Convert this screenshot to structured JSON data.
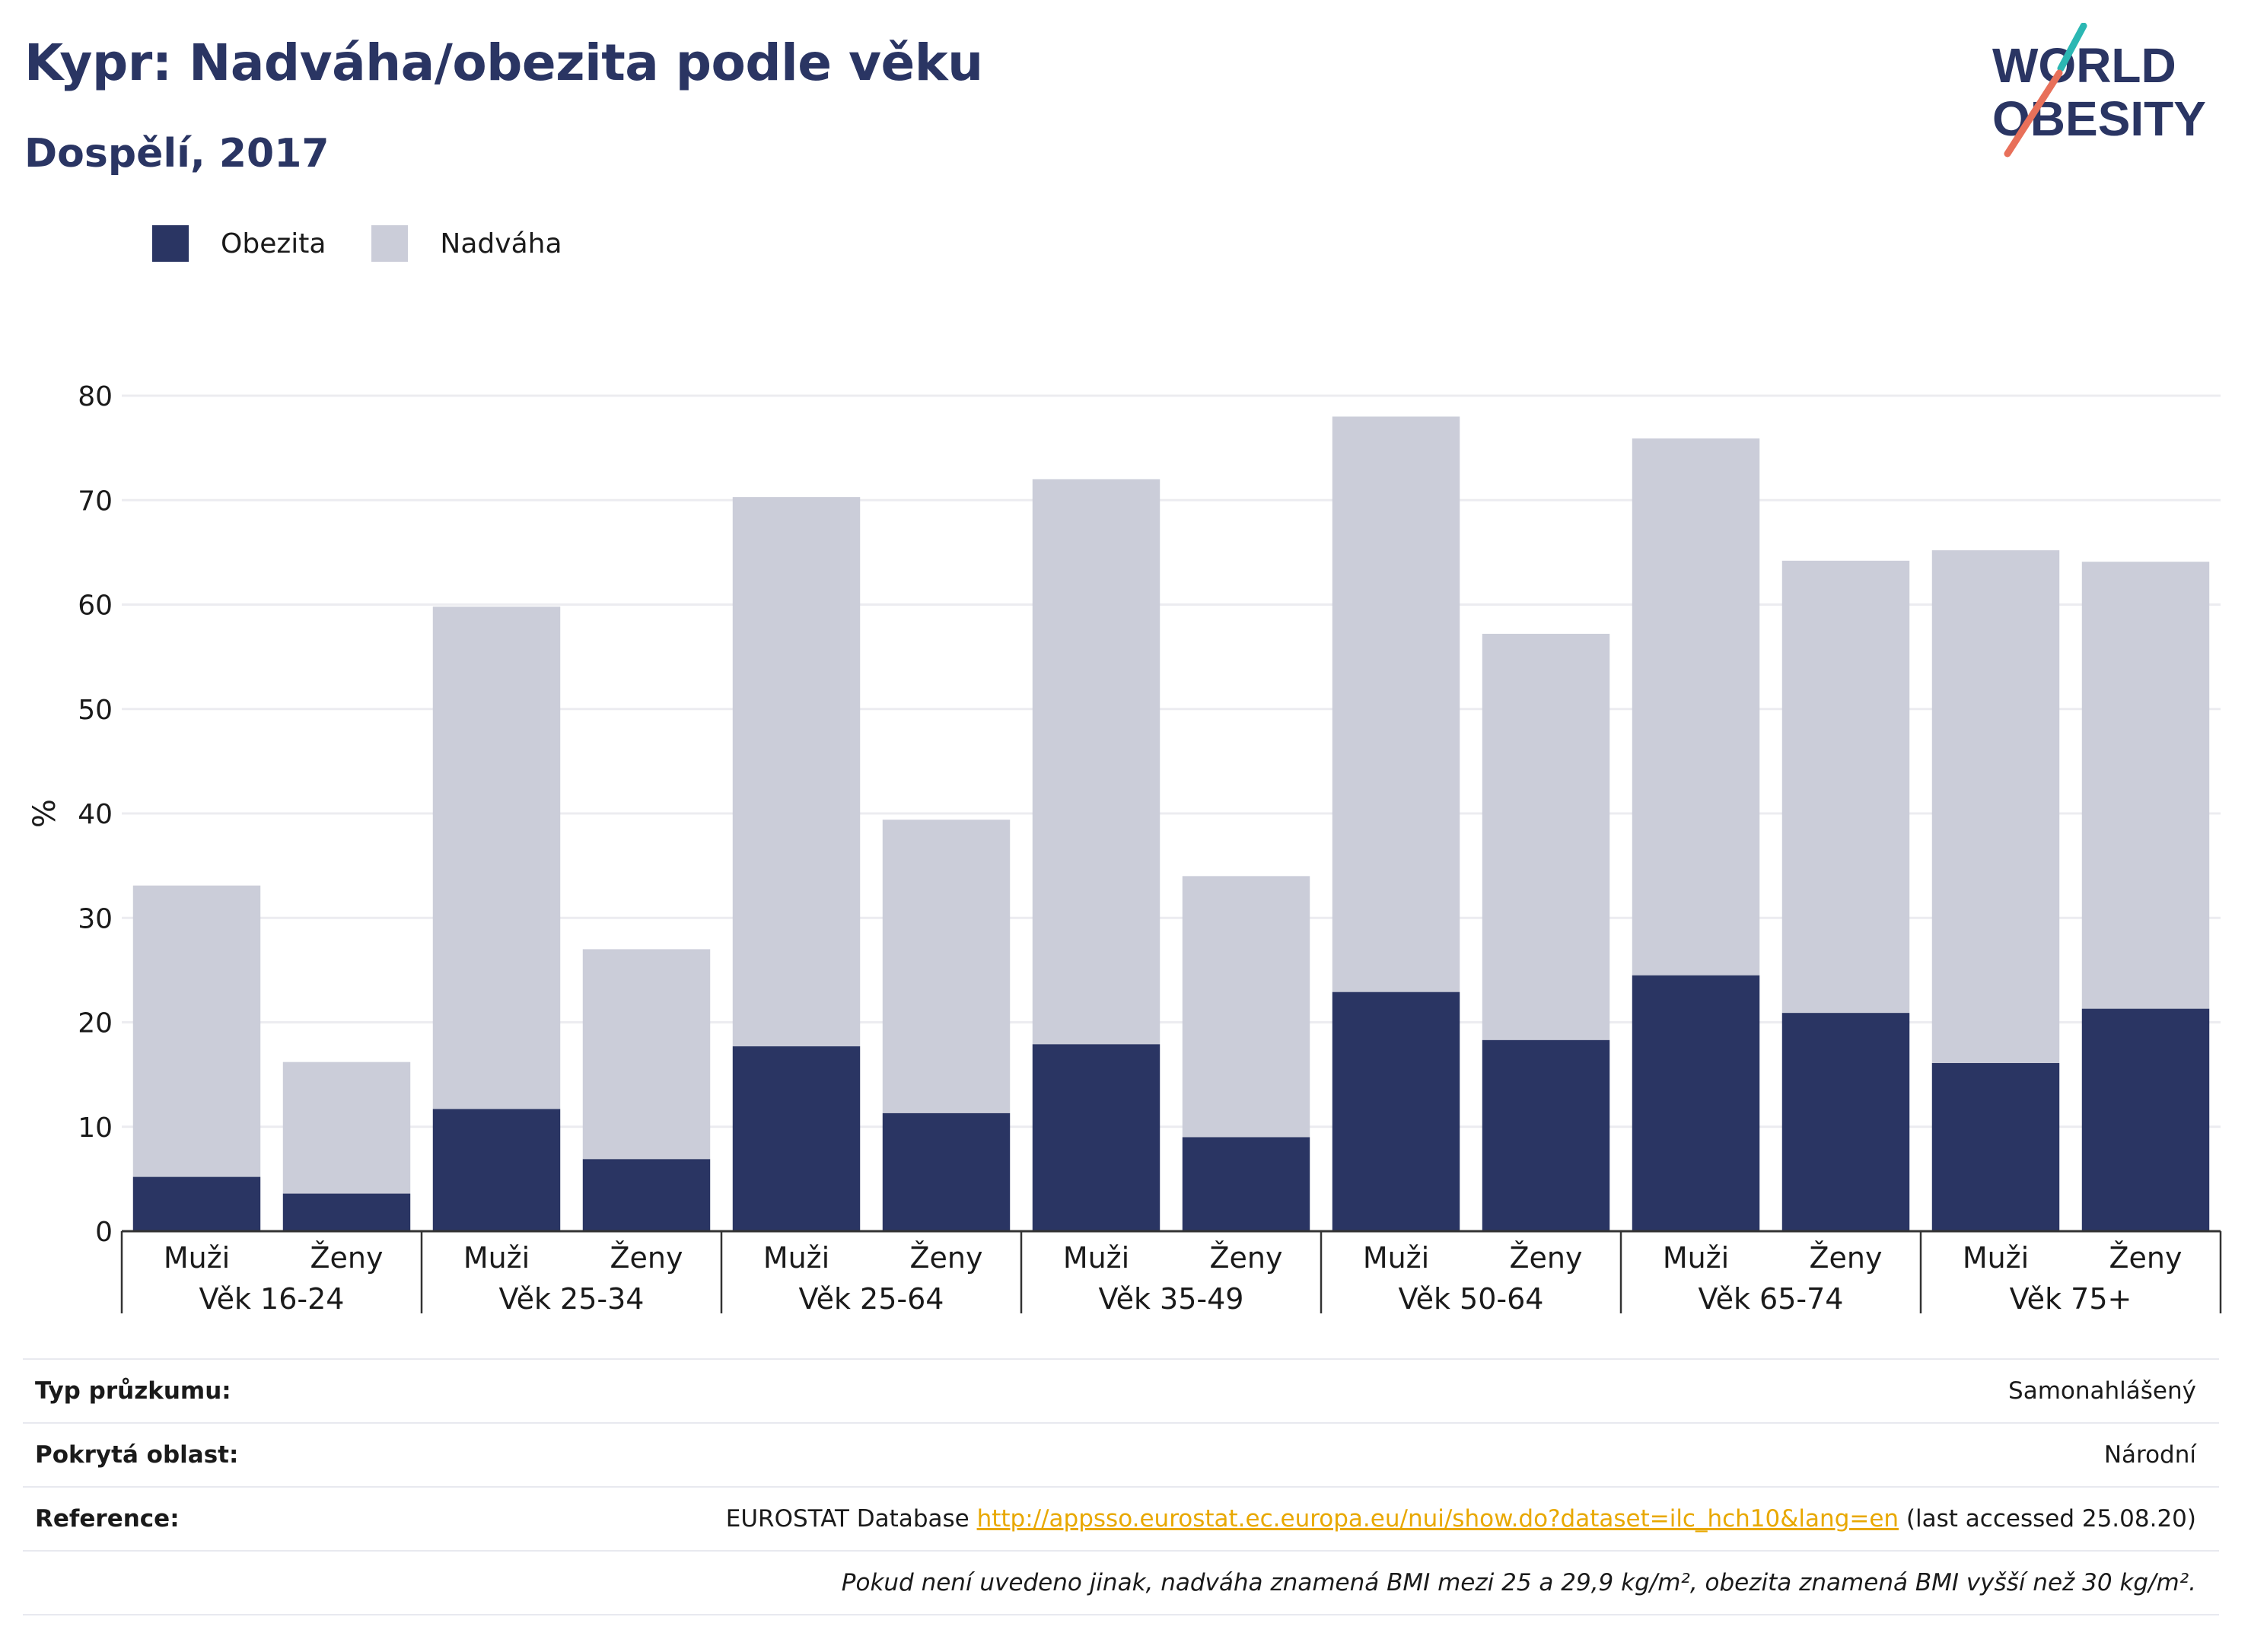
{
  "header": {
    "title": "Kypr: Nadváha/obezita podle věku",
    "subtitle": "Dospělí, 2017"
  },
  "logo": {
    "line1": "WORLD",
    "line2": "OBESITY"
  },
  "colors": {
    "obesity": "#2a3563",
    "overweight": "#cbcdd9",
    "accent_red": "#e8705a",
    "accent_teal": "#2bb7b3",
    "link": "#e8a800"
  },
  "chart_data": {
    "type": "bar",
    "stacked": true,
    "ylabel": "%",
    "ylim": [
      0,
      80
    ],
    "yticks": [
      "0",
      "10",
      "20",
      "30",
      "40",
      "50",
      "60",
      "70",
      "80"
    ],
    "grid": true,
    "legend_position": "top-left",
    "groups": [
      "Věk 16-24",
      "Věk 25-34",
      "Věk 25-64",
      "Věk 35-49",
      "Věk 50-64",
      "Věk 65-74",
      "Věk 75+"
    ],
    "subcategories": [
      "Muži",
      "Ženy"
    ],
    "series": [
      {
        "name": "Obezita",
        "color": "#2a3563",
        "values": [
          5.2,
          3.6,
          11.7,
          6.9,
          17.7,
          11.3,
          17.9,
          9.0,
          22.9,
          18.3,
          24.5,
          20.9,
          16.1,
          21.3
        ]
      },
      {
        "name": "Nadváha",
        "color": "#cbcdd9",
        "values": [
          27.9,
          12.6,
          48.1,
          20.1,
          52.6,
          28.1,
          54.1,
          25.0,
          55.1,
          38.9,
          51.4,
          43.3,
          49.1,
          42.8
        ]
      }
    ]
  },
  "info": {
    "survey_label": "Typ průzkumu:",
    "survey_value": "Samonahlášený",
    "coverage_label": "Pokrytá oblast:",
    "coverage_value": "Národní",
    "reference_label": "Reference:",
    "reference_prefix": "EUROSTAT Database",
    "reference_link": "http://appsso.eurostat.ec.europa.eu/nui/show.do?dataset=ilc_hch10&lang=en",
    "reference_suffix": "(last accessed 25.08.20)",
    "note": "Pokud není uvedeno jinak, nadváha znamená BMI mezi 25 a 29,9 kg/m², obezita znamená BMI vyšší než 30 kg/m²."
  }
}
